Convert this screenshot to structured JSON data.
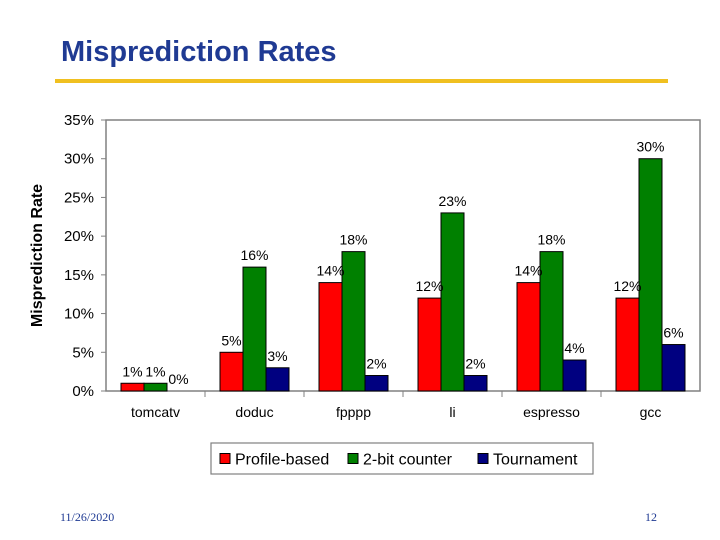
{
  "slide": {
    "title": "Misprediction Rates",
    "date": "11/26/2020",
    "page_number": "12"
  },
  "colors": {
    "title": "#1f3a93",
    "rule": "#f0c020"
  },
  "chart_data": {
    "type": "bar",
    "title": "",
    "xlabel": "",
    "ylabel": "Misprediction Rate",
    "ylim": [
      0,
      35
    ],
    "yticks": [
      0,
      5,
      10,
      15,
      20,
      25,
      30,
      35
    ],
    "ytick_labels": [
      "0%",
      "5%",
      "10%",
      "15%",
      "20%",
      "25%",
      "30%",
      "35%"
    ],
    "categories": [
      "tomcatv",
      "doduc",
      "fpppp",
      "li",
      "espresso",
      "gcc"
    ],
    "series": [
      {
        "name": "Profile-based",
        "color": "#ff0000",
        "values": [
          1,
          5,
          14,
          12,
          14,
          12
        ],
        "labels": [
          "1%",
          "5%",
          "14%",
          "12%",
          "14%",
          "12%"
        ]
      },
      {
        "name": "2-bit counter",
        "color": "#008000",
        "values": [
          1,
          16,
          18,
          23,
          18,
          30
        ],
        "labels": [
          "1%",
          "16%",
          "18%",
          "23%",
          "18%",
          "30%"
        ]
      },
      {
        "name": "Tournament",
        "color": "#000080",
        "values": [
          0,
          3,
          2,
          2,
          4,
          6
        ],
        "labels": [
          "0%",
          "3%",
          "2%",
          "2%",
          "4%",
          "6%"
        ]
      }
    ],
    "legend_position": "bottom",
    "grid": false
  }
}
